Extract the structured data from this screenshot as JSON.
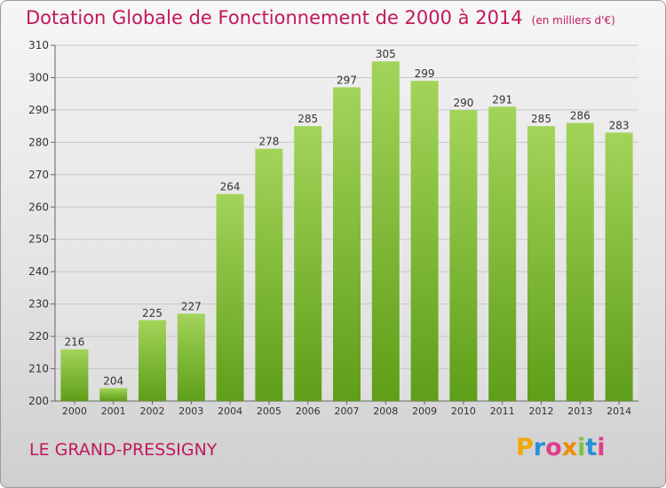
{
  "title": "Dotation Globale de Fonctionnement de 2000 à 2014",
  "unit_note": "(en milliers d'€)",
  "commune": "LE GRAND-PRESSIGNY",
  "logo": {
    "text": "Proxiti",
    "letters": [
      {
        "ch": "P",
        "color": "#f2a900"
      },
      {
        "ch": "r",
        "color": "#2a8fd6"
      },
      {
        "ch": "o",
        "color": "#e23c8b"
      },
      {
        "ch": "x",
        "color": "#f08a00"
      },
      {
        "ch": "i",
        "color": "#7cc242"
      },
      {
        "ch": "t",
        "color": "#2a8fd6"
      },
      {
        "ch": "i",
        "color": "#e23c8b"
      }
    ]
  },
  "colors": {
    "title": "#c2185b",
    "bar_top": "#a3d45a",
    "bar_bottom": "#5e9e18",
    "grid": "#c8c8c8"
  },
  "chart_data": {
    "type": "bar",
    "title": "Dotation Globale de Fonctionnement de 2000 à 2014",
    "subtitle": "(en milliers d'€)",
    "categories": [
      "2000",
      "2001",
      "2002",
      "2003",
      "2004",
      "2005",
      "2006",
      "2007",
      "2008",
      "2009",
      "2010",
      "2011",
      "2012",
      "2013",
      "2014"
    ],
    "values": [
      216,
      204,
      225,
      227,
      264,
      278,
      285,
      297,
      305,
      299,
      290,
      291,
      285,
      286,
      283
    ],
    "ylim": [
      200,
      310
    ],
    "yticks": [
      200,
      210,
      220,
      230,
      240,
      250,
      260,
      270,
      280,
      290,
      300,
      310
    ],
    "xlabel": "",
    "ylabel": "",
    "grid": true,
    "data_labels": true
  }
}
